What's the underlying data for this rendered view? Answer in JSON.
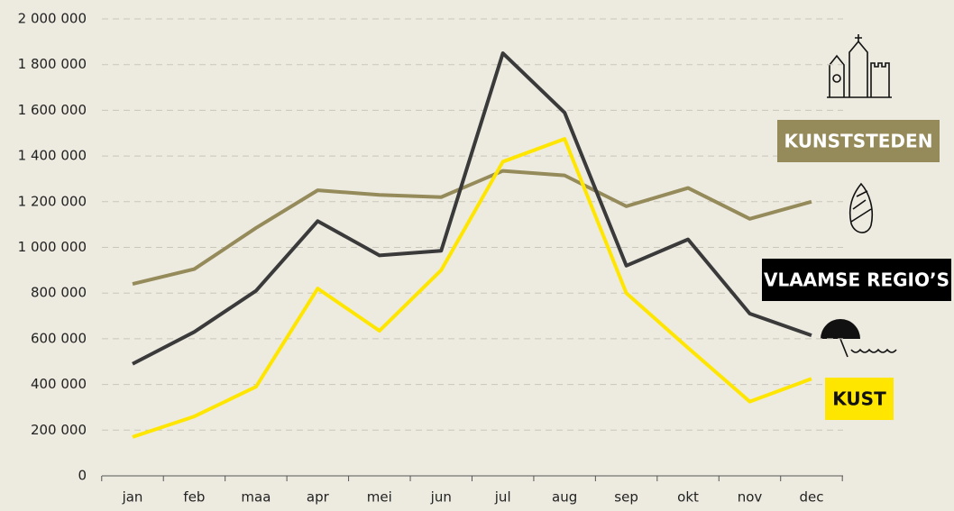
{
  "chart_data": {
    "type": "line",
    "categories": [
      "jan",
      "feb",
      "maa",
      "apr",
      "mei",
      "jun",
      "jul",
      "aug",
      "sep",
      "okt",
      "nov",
      "dec"
    ],
    "series": [
      {
        "name": "KUNSTSTEDEN",
        "color": "#958b5a",
        "values": [
          840000,
          905000,
          1085000,
          1250000,
          1230000,
          1220000,
          1335000,
          1315000,
          1180000,
          1260000,
          1125000,
          1200000
        ]
      },
      {
        "name": "VLAAMSE REGIO’S",
        "color": "#3a3a3a",
        "values": [
          490000,
          630000,
          810000,
          1115000,
          965000,
          985000,
          1850000,
          1590000,
          920000,
          1035000,
          710000,
          615000
        ]
      },
      {
        "name": "KUST",
        "color": "#ffe600",
        "values": [
          170000,
          260000,
          390000,
          820000,
          635000,
          900000,
          1375000,
          1475000,
          800000,
          560000,
          325000,
          425000
        ]
      }
    ],
    "ylim": [
      0,
      2000000
    ],
    "yticks": [
      0,
      {
        "value": 200000,
        "label": "200 000"
      },
      {
        "value": 400000,
        "label": "400 000"
      },
      {
        "value": 600000,
        "label": "600 000"
      },
      {
        "value": 800000,
        "label": "800 000"
      },
      {
        "value": 1000000,
        "label": "1 000 000"
      },
      {
        "value": 1200000,
        "label": "1 200 000"
      },
      {
        "value": 1400000,
        "label": "1 400 000"
      },
      {
        "value": 1600000,
        "label": "1 600 000"
      },
      {
        "value": 1800000,
        "label": "1 800 000"
      },
      {
        "value": 2000000,
        "label": "2 000 000"
      }
    ],
    "grid": true
  }
}
